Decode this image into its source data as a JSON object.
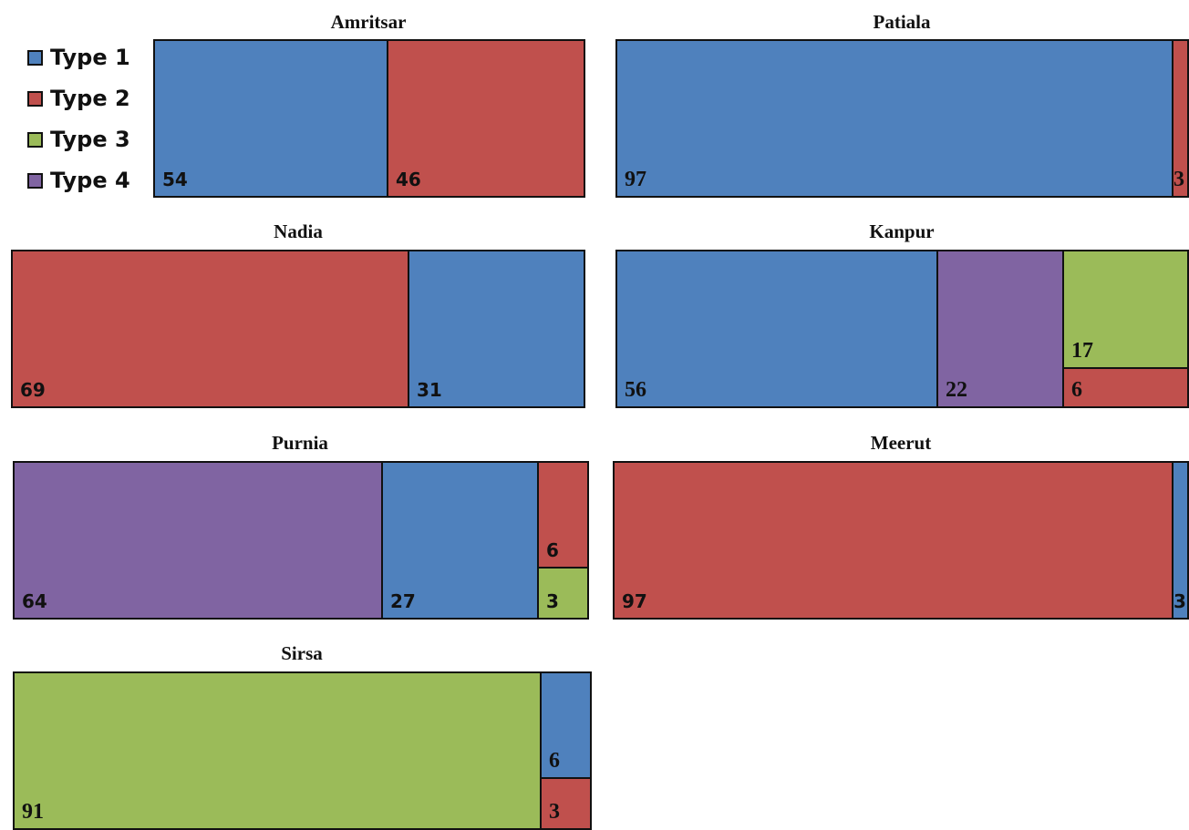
{
  "colors": {
    "Type 1": "#4f81bd",
    "Type 2": "#c0504d",
    "Type 3": "#9bbb59",
    "Type 4": "#8064a2"
  },
  "legend": [
    "Type 1",
    "Type 2",
    "Type 3",
    "Type 4"
  ],
  "chart_data": [
    {
      "type": "treemap",
      "title": "Amritsar",
      "values": [
        {
          "category": "Type 1",
          "value": 54
        },
        {
          "category": "Type 2",
          "value": 46
        }
      ]
    },
    {
      "type": "treemap",
      "title": "Patiala",
      "values": [
        {
          "category": "Type 1",
          "value": 97
        },
        {
          "category": "Type 2",
          "value": 3
        }
      ]
    },
    {
      "type": "treemap",
      "title": "Nadia",
      "values": [
        {
          "category": "Type 2",
          "value": 69
        },
        {
          "category": "Type 1",
          "value": 31
        }
      ]
    },
    {
      "type": "treemap",
      "title": "Kanpur",
      "values": [
        {
          "category": "Type 1",
          "value": 56
        },
        {
          "category": "Type 4",
          "value": 22
        },
        {
          "category": "Type 3",
          "value": 17
        },
        {
          "category": "Type 2",
          "value": 6
        }
      ]
    },
    {
      "type": "treemap",
      "title": "Purnia",
      "values": [
        {
          "category": "Type 4",
          "value": 64
        },
        {
          "category": "Type 1",
          "value": 27
        },
        {
          "category": "Type 2",
          "value": 6
        },
        {
          "category": "Type 3",
          "value": 3
        }
      ]
    },
    {
      "type": "treemap",
      "title": "Meerut",
      "values": [
        {
          "category": "Type 2",
          "value": 97
        },
        {
          "category": "Type 1",
          "value": 3
        }
      ]
    },
    {
      "type": "treemap",
      "title": "Sirsa",
      "values": [
        {
          "category": "Type 3",
          "value": 91
        },
        {
          "category": "Type 1",
          "value": 6
        },
        {
          "category": "Type 2",
          "value": 3
        }
      ]
    }
  ]
}
